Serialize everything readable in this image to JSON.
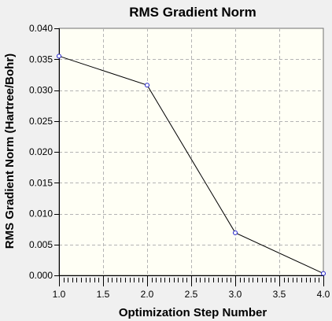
{
  "chart_data": {
    "type": "line",
    "title": "RMS Gradient Norm",
    "xlabel": "Optimization Step Number",
    "ylabel": "RMS Gradient Norm (Hartree/Bohr)",
    "xlim": [
      1.0,
      4.0
    ],
    "ylim": [
      0.0,
      0.04
    ],
    "xticks": [
      "1.0",
      "1.5",
      "2.0",
      "2.5",
      "3.0",
      "3.5",
      "4.0"
    ],
    "yticks": [
      "0.000",
      "0.005",
      "0.010",
      "0.015",
      "0.020",
      "0.025",
      "0.030",
      "0.035",
      "0.040"
    ],
    "grid": true,
    "series": [
      {
        "x": [
          1,
          2,
          3,
          4
        ],
        "y": [
          0.0355,
          0.0308,
          0.0069,
          0.0003
        ]
      }
    ],
    "colors": {
      "plot_background": "#fffff5",
      "page_background": "#f0f0f0",
      "line": "#000000",
      "marker": "#2222cc",
      "grid": "#b4b4b4"
    }
  }
}
